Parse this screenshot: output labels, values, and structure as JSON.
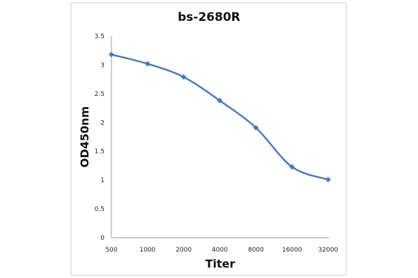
{
  "chart_data": {
    "type": "line",
    "title": "bs-2680R",
    "xlabel": "Titer",
    "ylabel": "OD450nm",
    "categories": [
      "500",
      "1000",
      "2000",
      "4000",
      "8000",
      "16000",
      "32000"
    ],
    "series": [
      {
        "name": "bs-2680R",
        "values": [
          3.18,
          3.02,
          2.79,
          2.38,
          1.91,
          1.23,
          1.01
        ],
        "color": "#4a7ab8"
      }
    ],
    "ylim": [
      0,
      3.5
    ],
    "yticks": [
      "0",
      "0.5",
      "1",
      "1.5",
      "2",
      "2.5",
      "3",
      "3.5"
    ],
    "grid": false,
    "legend": "none"
  }
}
